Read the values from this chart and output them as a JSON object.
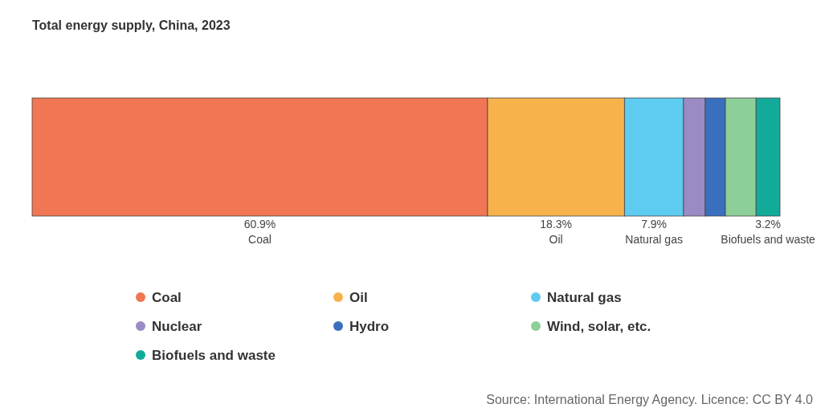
{
  "chart_data": {
    "type": "bar",
    "title": "Total energy supply, China, 2023",
    "orientation": "horizontal",
    "stacked": true,
    "categories": [
      null
    ],
    "legend": "bottom",
    "series": [
      {
        "name": "Coal",
        "color": "#f07654",
        "values": [
          60.9
        ],
        "value_labels": [
          "60.9%"
        ]
      },
      {
        "name": "Oil",
        "color": "#f7b24c",
        "values": [
          18.3
        ],
        "value_labels": [
          "18.3%"
        ]
      },
      {
        "name": "Natural gas",
        "color": "#5ecbf0",
        "values": [
          7.9
        ],
        "value_labels": [
          "7.9%"
        ]
      },
      {
        "name": "Nuclear",
        "color": "#9b8bc4",
        "values": [
          2.9
        ],
        "value_labels": [
          null
        ]
      },
      {
        "name": "Hydro",
        "color": "#3a6fbd",
        "values": [
          2.7
        ],
        "value_labels": [
          null
        ]
      },
      {
        "name": "Wind, solar, etc.",
        "color": "#8ccf98",
        "values": [
          4.1
        ],
        "value_labels": [
          null
        ]
      },
      {
        "name": "Biofuels and waste",
        "color": "#12ab9a",
        "values": [
          3.2
        ],
        "value_labels": [
          "3.2%"
        ]
      }
    ],
    "annotations": [
      "Source: International Energy Agency. Licence: CC BY 4.0"
    ]
  }
}
